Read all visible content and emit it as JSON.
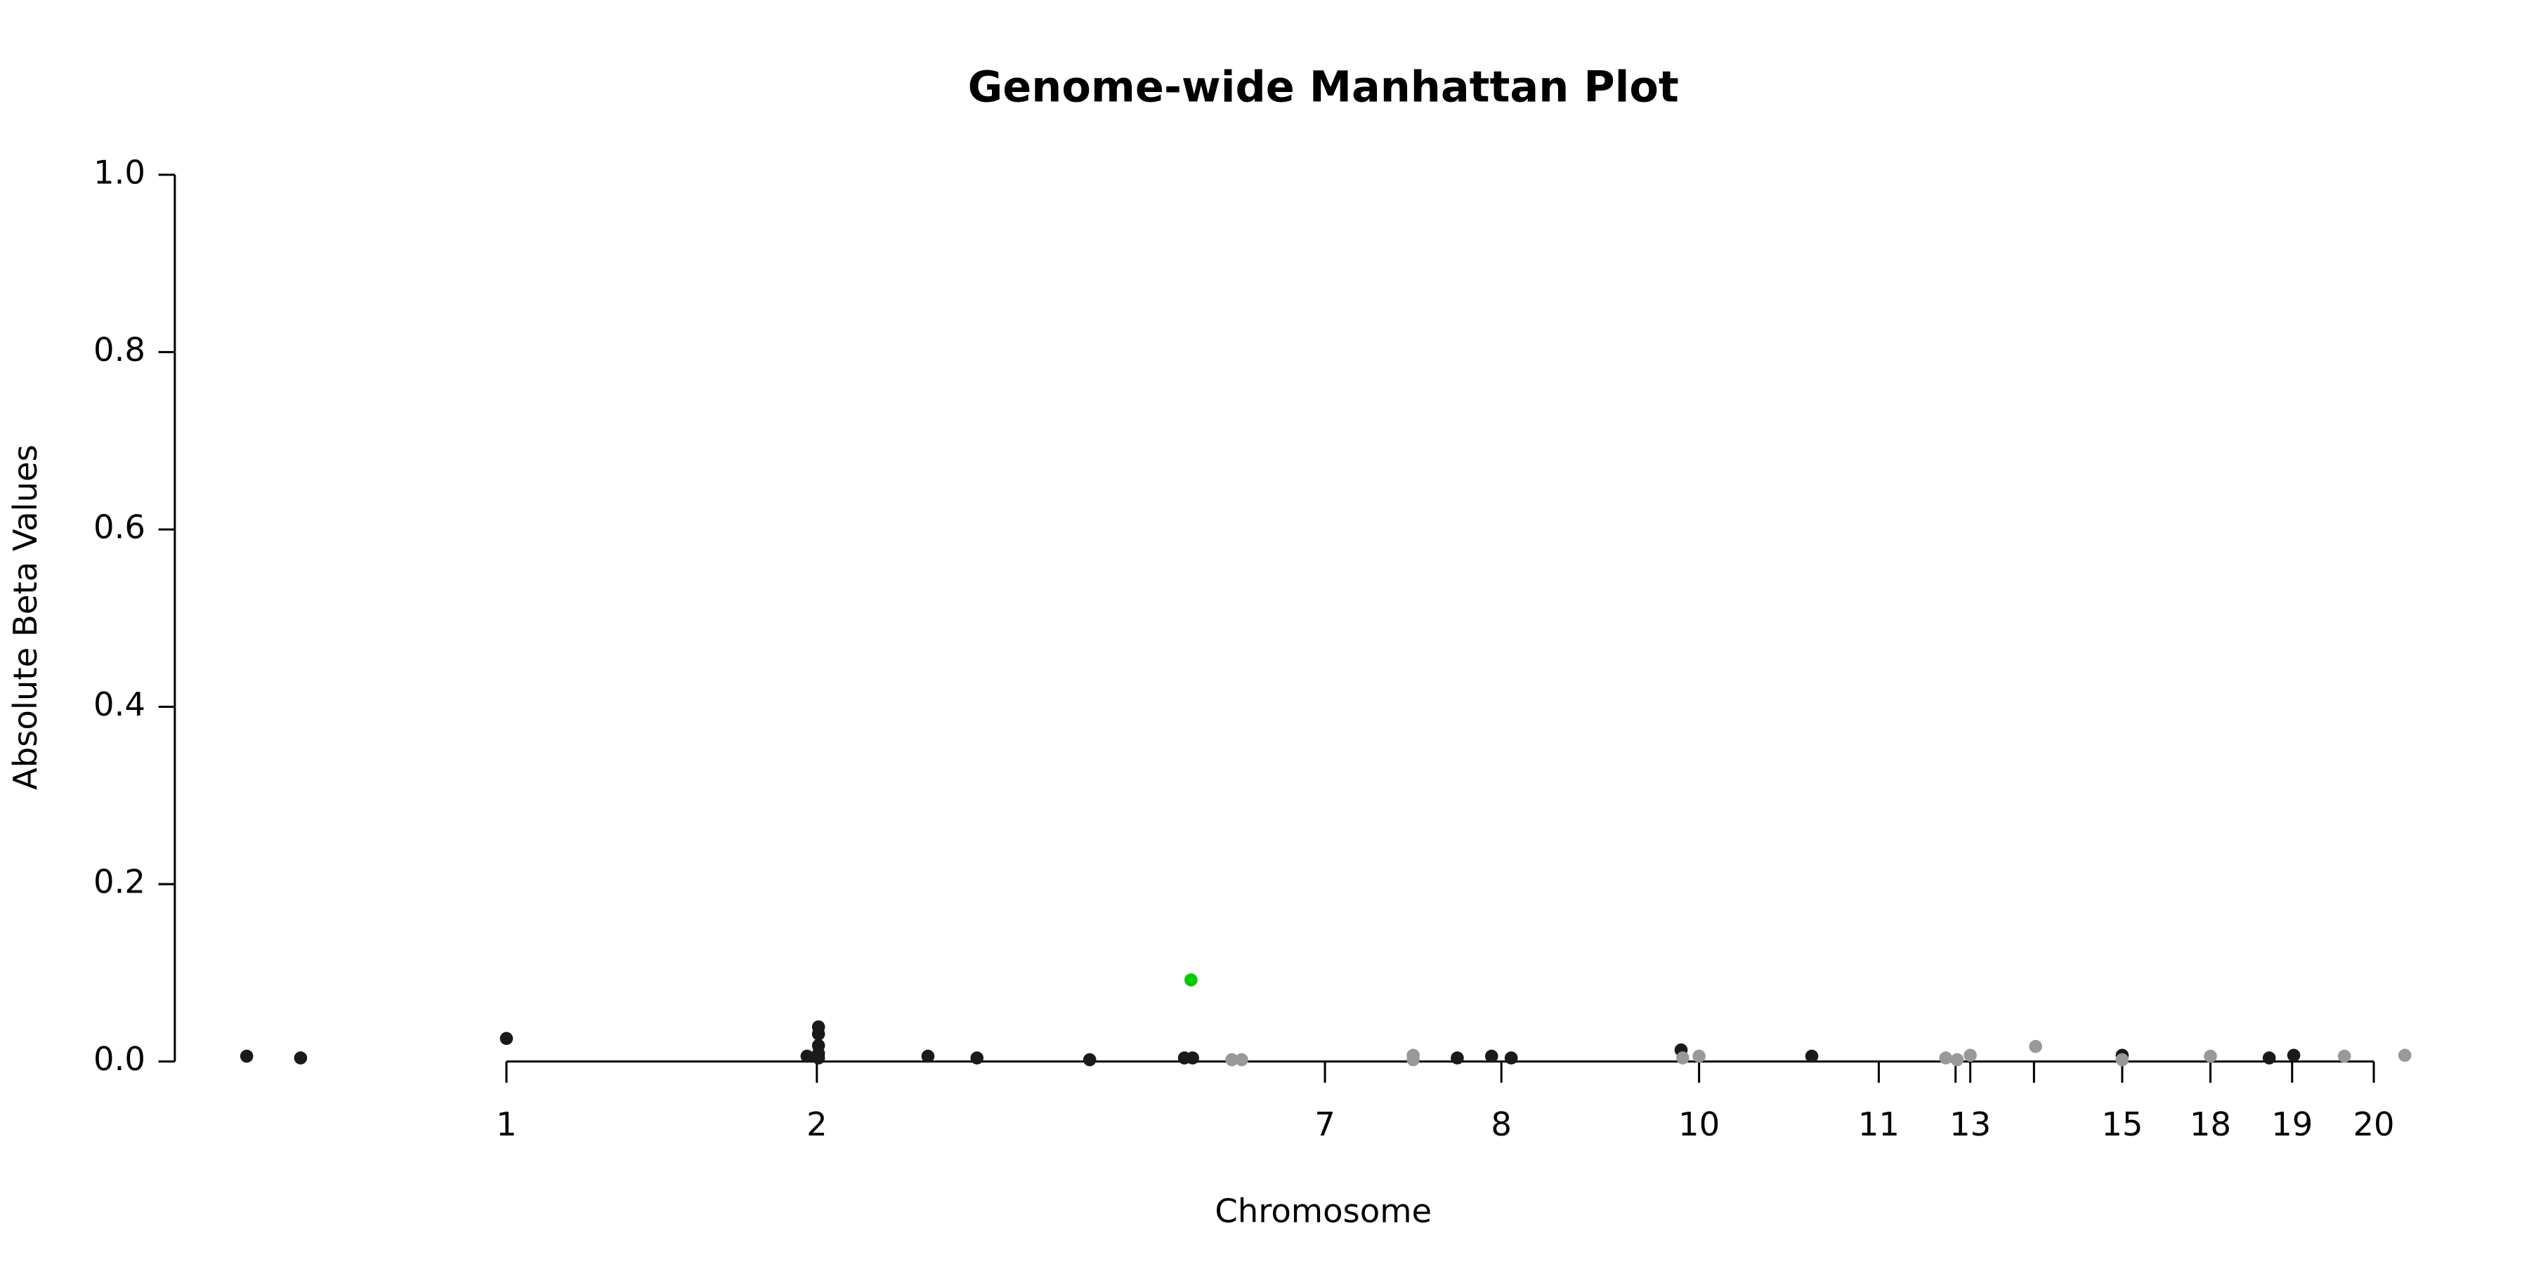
{
  "chart_data": {
    "type": "scatter",
    "title": "Genome-wide Manhattan Plot",
    "x_label": "Chromosome",
    "y_label": "Absolute Beta Values",
    "xlim": [
      0,
      1400
    ],
    "ylim": [
      0,
      1
    ],
    "xticks": [
      {
        "value": 203,
        "label": "1"
      },
      {
        "value": 393,
        "label": "2"
      },
      {
        "value": 704,
        "label": "7"
      },
      {
        "value": 812,
        "label": "8"
      },
      {
        "value": 933,
        "label": "10"
      },
      {
        "value": 1043,
        "label": "11"
      },
      {
        "value": 1090,
        "label": null
      },
      {
        "value": 1099,
        "label": "13"
      },
      {
        "value": 1138,
        "label": null
      },
      {
        "value": 1192,
        "label": "15"
      },
      {
        "value": 1246,
        "label": "18"
      },
      {
        "value": 1296,
        "label": "19"
      },
      {
        "value": 1346,
        "label": "20"
      }
    ],
    "yticks": [
      {
        "value": 0,
        "label": "0.0"
      },
      {
        "value": 0.2,
        "label": "0.2"
      },
      {
        "value": 0.4,
        "label": "0.4"
      },
      {
        "value": 0.6,
        "label": "0.6"
      },
      {
        "value": 0.8,
        "label": "0.8"
      },
      {
        "value": 1,
        "label": "1.0"
      }
    ],
    "series": [
      {
        "color": "#1a1a1a",
        "x": [
          44,
          77,
          203,
          387,
          394,
          394,
          394,
          394,
          394,
          461,
          491,
          560,
          618,
          623,
          785,
          806,
          818,
          922,
          1002,
          1192,
          1282,
          1297
        ],
        "values": [
          0.006,
          0.004,
          0.026,
          0.006,
          0.039,
          0.031,
          0.018,
          0.009,
          0.004,
          0.006,
          0.004,
          0.002,
          0.004,
          0.004,
          0.004,
          0.006,
          0.004,
          0.013,
          0.006,
          0.007,
          0.004,
          0.007
        ]
      },
      {
        "color": "#999999",
        "x": [
          647,
          653,
          758,
          758,
          923,
          933,
          1084,
          1091,
          1099,
          1139,
          1192,
          1246,
          1328,
          1365
        ],
        "values": [
          0.002,
          0.002,
          0.007,
          0.002,
          0.004,
          0.006,
          0.004,
          0.002,
          0.007,
          0.017,
          0.002,
          0.006,
          0.006,
          0.007
        ]
      },
      {
        "color": "#00cc00",
        "x": [
          622
        ],
        "values": [
          0.092
        ]
      }
    ]
  }
}
